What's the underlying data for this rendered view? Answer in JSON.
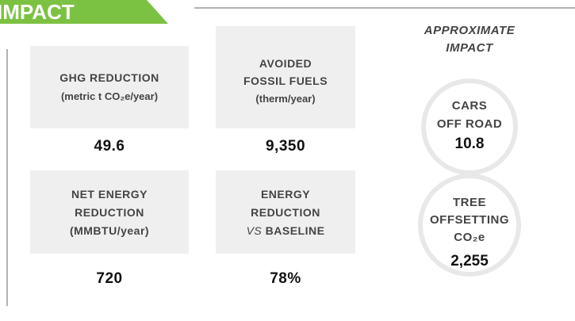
{
  "header": {
    "title": "IMPACT"
  },
  "cards": [
    {
      "lines": [
        "GHG REDUCTION",
        "(metric t CO₂e/year)"
      ],
      "value": "49.6"
    },
    {
      "lines": [
        "AVOIDED",
        "FOSSIL FUELS",
        "(therm/year)"
      ],
      "value": "9,350"
    },
    {
      "lines": [
        "NET ENERGY",
        "REDUCTION",
        "(MMBTU/year)"
      ],
      "value": "720"
    },
    {
      "lines": [
        "ENERGY",
        "REDUCTION"
      ],
      "italic": "VS",
      "rest": "BASELINE",
      "value": "78%"
    }
  ],
  "approximate": {
    "title": [
      "APPROXIMATE",
      "IMPACT"
    ],
    "items": [
      {
        "lines": [
          "CARS",
          "OFF ROAD"
        ],
        "value": "10.8"
      },
      {
        "lines": [
          "TREE",
          "OFFSETTING",
          "CO₂e"
        ],
        "value": "2,255"
      }
    ]
  }
}
